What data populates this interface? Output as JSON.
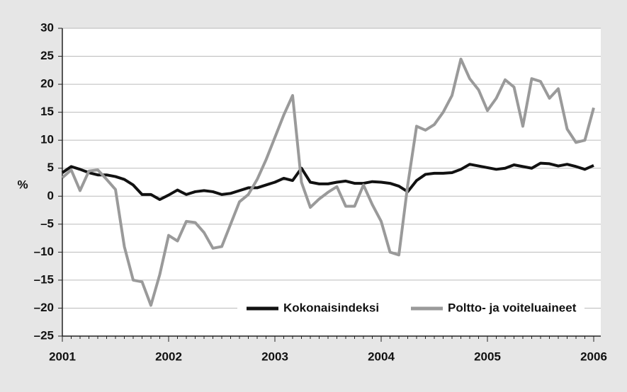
{
  "chart_data": {
    "type": "line",
    "ylabel": "%",
    "categories": [
      "2001",
      null,
      null,
      null,
      null,
      null,
      null,
      null,
      null,
      null,
      null,
      null,
      "2002",
      null,
      null,
      null,
      null,
      null,
      null,
      null,
      null,
      null,
      null,
      null,
      "2003",
      null,
      null,
      null,
      null,
      null,
      null,
      null,
      null,
      null,
      null,
      null,
      "2004",
      null,
      null,
      null,
      null,
      null,
      null,
      null,
      null,
      null,
      null,
      null,
      "2005",
      null,
      null,
      null,
      null,
      null,
      null,
      null,
      null,
      null,
      null,
      null,
      "2006"
    ],
    "series": [
      {
        "name": "Kokonaisindeksi",
        "color": "#111111",
        "values": [
          4.2,
          5.3,
          4.8,
          4.2,
          3.8,
          3.8,
          3.5,
          3.0,
          2.0,
          0.3,
          0.3,
          -0.6,
          0.2,
          1.1,
          0.3,
          0.8,
          1.0,
          0.8,
          0.3,
          0.5,
          1.0,
          1.5,
          1.5,
          2.0,
          2.5,
          3.2,
          2.8,
          5.0,
          2.5,
          2.2,
          2.2,
          2.5,
          2.7,
          2.3,
          2.3,
          2.6,
          2.5,
          2.3,
          1.8,
          0.8,
          2.8,
          3.9,
          4.1,
          4.1,
          4.2,
          4.8,
          5.7,
          5.4,
          5.1,
          4.8,
          5.0,
          5.6,
          5.3,
          5.0,
          5.9,
          5.8,
          5.4,
          5.7,
          5.3,
          4.8,
          5.5
        ]
      },
      {
        "name": "Poltto- ja voiteluaineet",
        "color": "#9a9a9a",
        "values": [
          3.3,
          4.7,
          1.0,
          4.5,
          4.7,
          3.0,
          1.2,
          -9,
          -15,
          -15.3,
          -19.5,
          -14,
          -7,
          -8,
          -4.5,
          -4.7,
          -6.5,
          -9.3,
          -9,
          -5,
          -1,
          0.3,
          3,
          6.5,
          10.5,
          14.5,
          18,
          2.5,
          -2,
          -0.5,
          0.7,
          1.7,
          -1.8,
          -1.8,
          2,
          -1.5,
          -4.5,
          -10,
          -10.5,
          2,
          12.5,
          11.8,
          12.8,
          15,
          18,
          24.5,
          21,
          19,
          15.3,
          17.5,
          20.8,
          19.5,
          12.5,
          21,
          20.5,
          17.5,
          19.2,
          12,
          9.6,
          10,
          15.8
        ]
      }
    ],
    "ylim": [
      -25,
      30
    ],
    "yticks": [
      {
        "value": -25,
        "label": "–25"
      },
      {
        "value": -20,
        "label": "–20"
      },
      {
        "value": -15,
        "label": "–15"
      },
      {
        "value": -10,
        "label": "–10"
      },
      {
        "value": -5,
        "label": "–5"
      },
      0,
      5,
      10,
      15,
      20,
      25,
      30
    ],
    "grid": true,
    "legend": "bottom-right"
  }
}
